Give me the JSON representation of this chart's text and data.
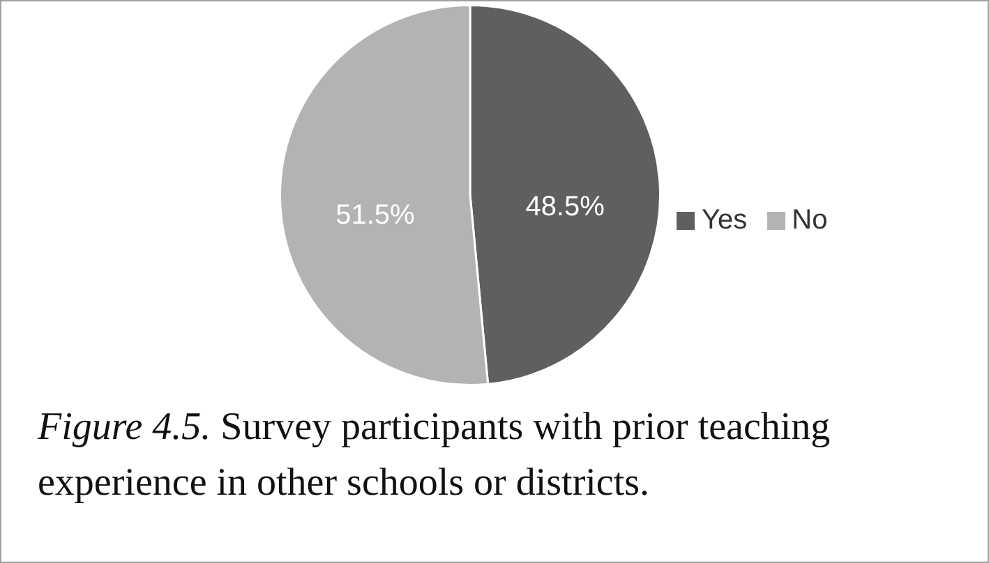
{
  "chart_data": {
    "type": "pie",
    "categories": [
      "Yes",
      "No"
    ],
    "values": [
      48.5,
      51.5
    ],
    "colors": [
      "#5f5f5f",
      "#b3b3b3"
    ],
    "value_labels": [
      "48.5%",
      "51.5%"
    ],
    "legend": "right",
    "annotations": [
      "Figure 4.5.",
      "Survey participants with prior teaching experience in other schools or districts."
    ]
  }
}
